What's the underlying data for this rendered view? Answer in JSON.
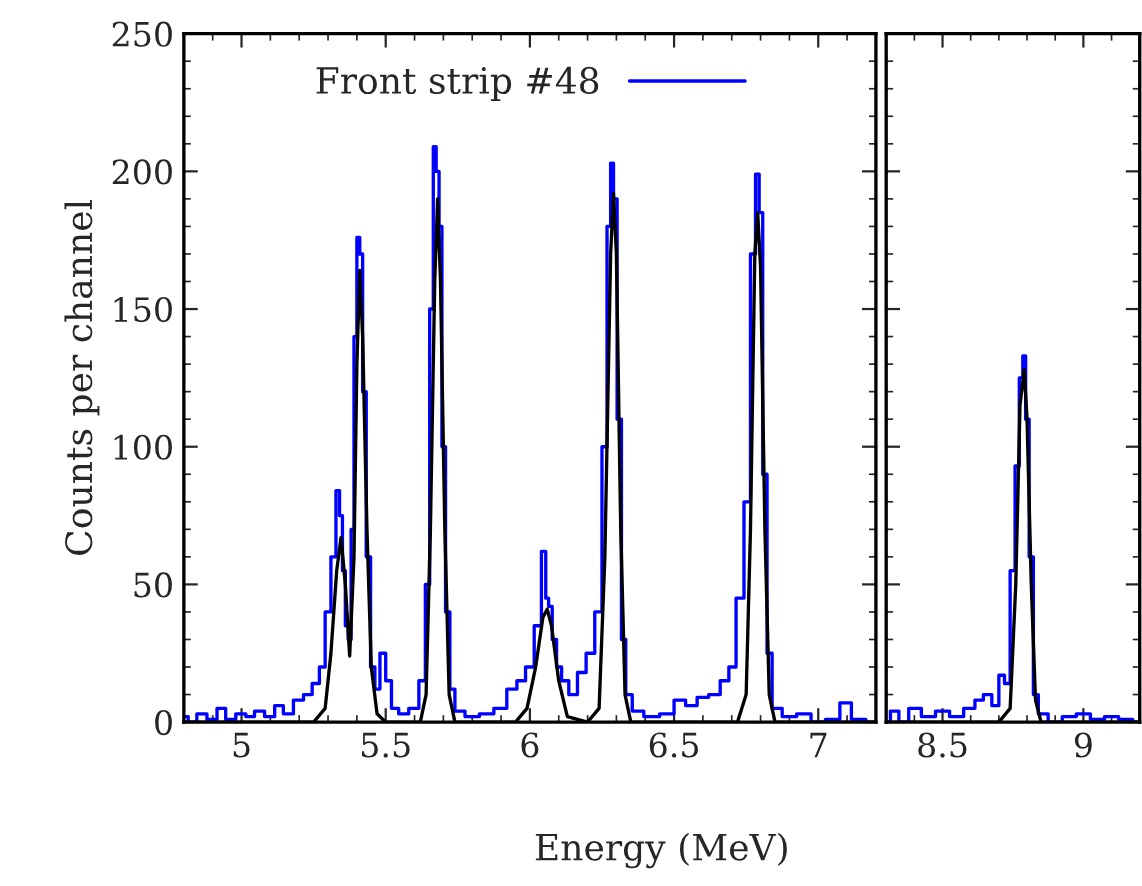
{
  "chart_data": [
    {
      "type": "step",
      "xlabel": "Energy (MeV)",
      "ylabel": "Counts per channel",
      "legend": "top",
      "xlim": [
        4.8,
        7.2
      ],
      "xticks": [
        5,
        5.5,
        6,
        6.5,
        7
      ],
      "ylim": [
        0,
        250
      ],
      "yticks": [
        0,
        50,
        100,
        150,
        200,
        250
      ],
      "series": [
        {
          "name": "Front strip #48",
          "color": "#0000ff",
          "x": [
            4.8,
            4.83,
            4.86,
            4.9,
            4.93,
            4.96,
            5.0,
            5.03,
            5.06,
            5.1,
            5.13,
            5.16,
            5.2,
            5.23,
            5.26,
            5.28,
            5.3,
            5.32,
            5.335,
            5.345,
            5.355,
            5.365,
            5.375,
            5.385,
            5.395,
            5.405,
            5.415,
            5.425,
            5.44,
            5.455,
            5.47,
            5.49,
            5.51,
            5.53,
            5.56,
            5.6,
            5.63,
            5.645,
            5.66,
            5.67,
            5.68,
            5.69,
            5.7,
            5.715,
            5.73,
            5.75,
            5.8,
            5.85,
            5.9,
            5.94,
            5.97,
            6.0,
            6.03,
            6.05,
            6.06,
            6.07,
            6.085,
            6.1,
            6.12,
            6.15,
            6.18,
            6.21,
            6.24,
            6.26,
            6.275,
            6.285,
            6.295,
            6.31,
            6.325,
            6.34,
            6.37,
            6.42,
            6.48,
            6.52,
            6.56,
            6.6,
            6.64,
            6.68,
            6.7,
            6.73,
            6.755,
            6.775,
            6.79,
            6.8,
            6.815,
            6.83,
            6.85,
            6.9,
            6.95,
            7.0,
            7.05,
            7.1,
            7.13,
            7.2
          ],
          "values": [
            2,
            0,
            3,
            1,
            5,
            1,
            3,
            2,
            4,
            2,
            6,
            3,
            8,
            10,
            14,
            20,
            40,
            60,
            84,
            75,
            55,
            35,
            30,
            70,
            140,
            176,
            170,
            120,
            60,
            20,
            12,
            25,
            15,
            5,
            3,
            5,
            15,
            50,
            150,
            209,
            200,
            180,
            100,
            40,
            12,
            4,
            2,
            3,
            5,
            12,
            15,
            20,
            35,
            62,
            45,
            42,
            30,
            20,
            15,
            10,
            18,
            25,
            40,
            100,
            180,
            203,
            190,
            110,
            30,
            10,
            4,
            2,
            3,
            8,
            6,
            9,
            10,
            15,
            20,
            45,
            80,
            170,
            199,
            185,
            90,
            25,
            5,
            2,
            3,
            0,
            1,
            7,
            1,
            0
          ]
        },
        {
          "type": "line",
          "color": "#000000",
          "x": [
            4.8,
            5.25,
            5.29,
            5.31,
            5.33,
            5.345,
            5.36,
            5.375,
            5.39,
            5.4,
            5.41,
            5.42,
            5.435,
            5.45,
            5.47,
            5.5,
            5.62,
            5.64,
            5.655,
            5.67,
            5.68,
            5.69,
            5.705,
            5.72,
            5.74,
            5.95,
            5.99,
            6.02,
            6.045,
            6.06,
            6.075,
            6.1,
            6.13,
            6.2,
            6.24,
            6.26,
            6.28,
            6.29,
            6.3,
            6.315,
            6.33,
            6.35,
            6.72,
            6.75,
            6.765,
            6.78,
            6.79,
            6.8,
            6.815,
            6.83,
            6.85,
            7.2
          ],
          "values": [
            0,
            0,
            5,
            25,
            55,
            67,
            50,
            24,
            60,
            130,
            164,
            140,
            70,
            20,
            3,
            0,
            0,
            10,
            70,
            160,
            190,
            160,
            70,
            10,
            0,
            0,
            5,
            20,
            38,
            41,
            35,
            15,
            2,
            0,
            5,
            60,
            170,
            192,
            170,
            70,
            10,
            0,
            0,
            10,
            70,
            170,
            185,
            165,
            70,
            10,
            0,
            0
          ]
        }
      ]
    },
    {
      "type": "step",
      "tick_labels": "x",
      "xlim": [
        8.3,
        9.2
      ],
      "xticks": [
        8.5,
        9
      ],
      "ylim": [
        0,
        250
      ],
      "yticks": [
        0,
        50,
        100,
        150,
        200,
        250
      ],
      "series": [
        {
          "color": "#0000ff",
          "x": [
            8.3,
            8.33,
            8.36,
            8.4,
            8.45,
            8.5,
            8.55,
            8.6,
            8.63,
            8.66,
            8.69,
            8.71,
            8.73,
            8.75,
            8.765,
            8.78,
            8.79,
            8.8,
            8.815,
            8.83,
            8.85,
            8.9,
            8.95,
            9.0,
            9.05,
            9.1,
            9.15,
            9.2
          ],
          "values": [
            0,
            4,
            0,
            5,
            2,
            4,
            2,
            5,
            8,
            10,
            6,
            17,
            14,
            55,
            93,
            125,
            133,
            110,
            60,
            10,
            3,
            0,
            2,
            3,
            1,
            2,
            1,
            0
          ]
        },
        {
          "type": "line",
          "color": "#000000",
          "x": [
            8.3,
            8.7,
            8.74,
            8.76,
            8.775,
            8.79,
            8.8,
            8.815,
            8.83,
            8.85,
            9.2
          ],
          "values": [
            0,
            0,
            5,
            50,
            115,
            128,
            110,
            50,
            8,
            0,
            0
          ]
        }
      ]
    }
  ]
}
